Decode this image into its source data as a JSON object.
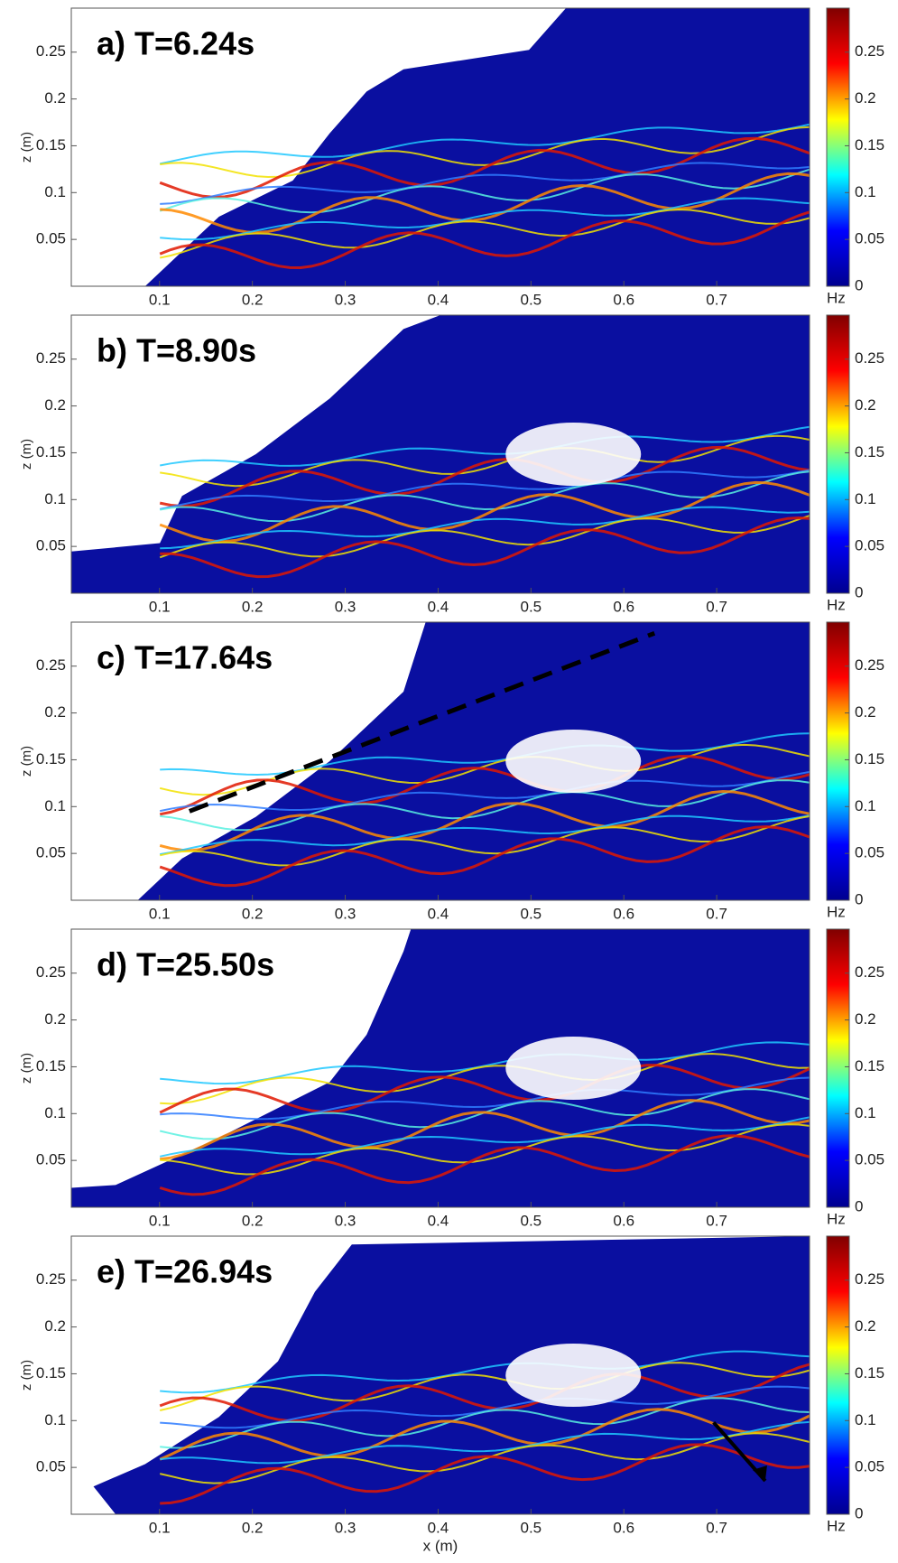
{
  "chart_data": [
    {
      "type": "heatmap",
      "title": "a) T=6.24s",
      "ylabel": "z (m)",
      "xlim": [
        0.005,
        0.8
      ],
      "ylim": [
        0,
        0.297
      ],
      "xticks": [
        0.1,
        0.2,
        0.3,
        0.4,
        0.5,
        0.6,
        0.7
      ],
      "yticks": [
        0.05,
        0.1,
        0.15,
        0.2,
        0.25
      ],
      "colorbar": {
        "label": "Hz",
        "lim": [
          0,
          0.297
        ],
        "ticks": [
          0,
          0.05,
          0.1,
          0.15,
          0.2,
          0.25
        ],
        "colormap": [
          "#00008f",
          "#0000ff",
          "#00ffff",
          "#ffff00",
          "#ff0000",
          "#800000"
        ]
      }
    },
    {
      "type": "heatmap",
      "title": "b) T=8.90s",
      "ylabel": "z (m)",
      "xlim": [
        0.005,
        0.8
      ],
      "ylim": [
        0,
        0.297
      ],
      "xticks": [
        0.1,
        0.2,
        0.3,
        0.4,
        0.5,
        0.6,
        0.7
      ],
      "yticks": [
        0.05,
        0.1,
        0.15,
        0.2,
        0.25
      ],
      "colorbar": {
        "label": "Hz",
        "lim": [
          0,
          0.297
        ],
        "ticks": [
          0,
          0.05,
          0.1,
          0.15,
          0.2,
          0.25
        ],
        "colormap": [
          "#00008f",
          "#0000ff",
          "#00ffff",
          "#ffff00",
          "#ff0000",
          "#800000"
        ]
      }
    },
    {
      "type": "heatmap",
      "title": "c) T=17.64s",
      "ylabel": "z (m)",
      "xlim": [
        0.005,
        0.8
      ],
      "ylim": [
        0,
        0.297
      ],
      "xticks": [
        0.1,
        0.2,
        0.3,
        0.4,
        0.5,
        0.6,
        0.7
      ],
      "yticks": [
        0.05,
        0.1,
        0.15,
        0.2,
        0.25
      ],
      "colorbar": {
        "label": "Hz",
        "lim": [
          0,
          0.297
        ],
        "ticks": [
          0,
          0.05,
          0.1,
          0.15,
          0.2,
          0.25
        ],
        "colormap": [
          "#00008f",
          "#0000ff",
          "#00ffff",
          "#ffff00",
          "#ff0000",
          "#800000"
        ]
      }
    },
    {
      "type": "heatmap",
      "title": "d) T=25.50s",
      "ylabel": "z (m)",
      "xlim": [
        0.005,
        0.8
      ],
      "ylim": [
        0,
        0.297
      ],
      "xticks": [
        0.1,
        0.2,
        0.3,
        0.4,
        0.5,
        0.6,
        0.7
      ],
      "yticks": [
        0.05,
        0.1,
        0.15,
        0.2,
        0.25
      ],
      "colorbar": {
        "label": "Hz",
        "lim": [
          0,
          0.297
        ],
        "ticks": [
          0,
          0.05,
          0.1,
          0.15,
          0.2,
          0.25
        ],
        "colormap": [
          "#00008f",
          "#0000ff",
          "#00ffff",
          "#ffff00",
          "#ff0000",
          "#800000"
        ]
      }
    },
    {
      "type": "heatmap",
      "title": "e) T=26.94s",
      "ylabel": "z (m)",
      "xlabel": "x (m)",
      "xlim": [
        0.005,
        0.8
      ],
      "ylim": [
        0,
        0.297
      ],
      "xticks": [
        0.1,
        0.2,
        0.3,
        0.4,
        0.5,
        0.6,
        0.7
      ],
      "yticks": [
        0.05,
        0.1,
        0.15,
        0.2,
        0.25
      ],
      "colorbar": {
        "label": "Hz",
        "lim": [
          0,
          0.297
        ],
        "ticks": [
          0,
          0.05,
          0.1,
          0.15,
          0.2,
          0.25
        ],
        "colormap": [
          "#00008f",
          "#0000ff",
          "#00ffff",
          "#ffff00",
          "#ff0000",
          "#800000"
        ]
      }
    }
  ]
}
